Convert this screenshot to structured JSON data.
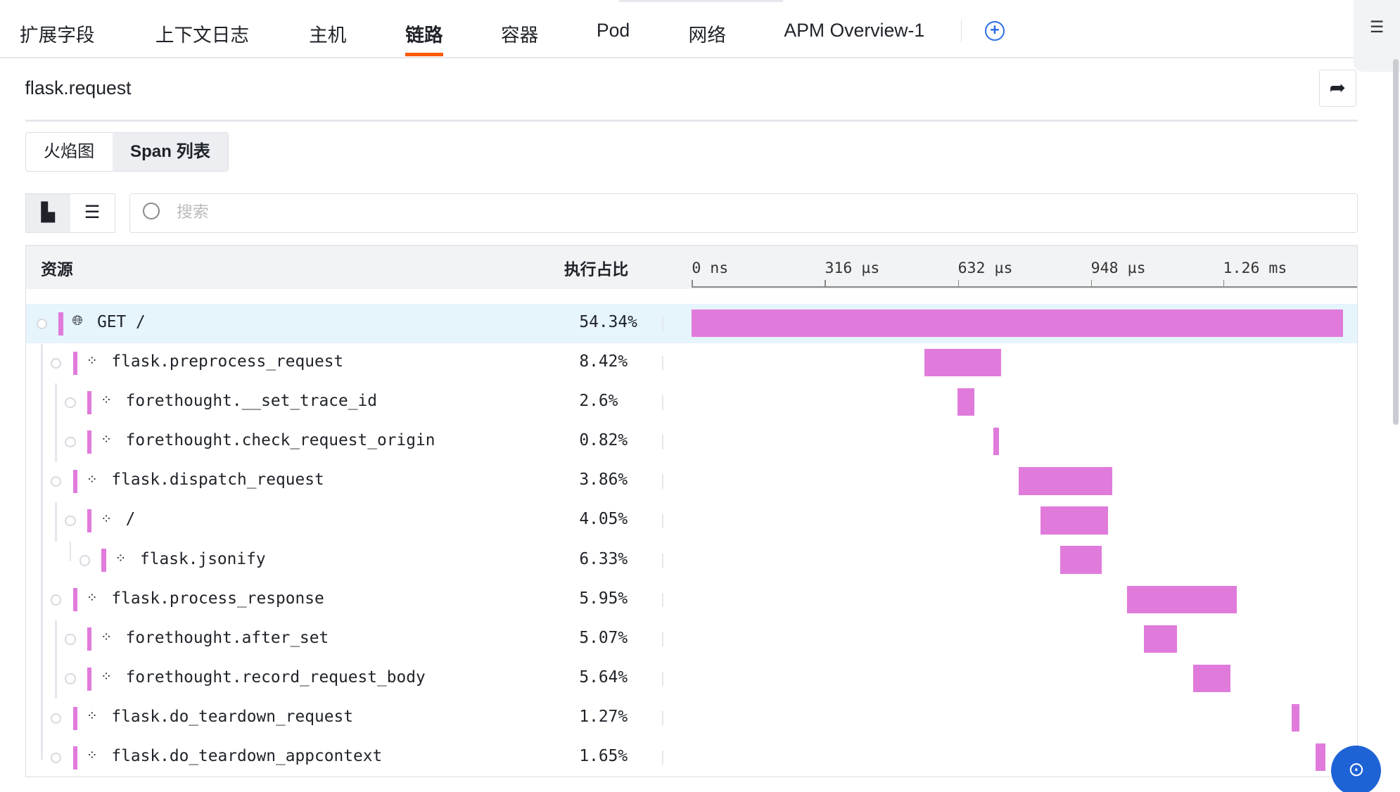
{
  "tabs": [
    "扩展字段",
    "上下文日志",
    "主机",
    "链路",
    "容器",
    "Pod",
    "网络",
    "APM Overview-1"
  ],
  "active_tab": "链路",
  "title": "flask.request",
  "view_tabs": {
    "flame": "火焰图",
    "span_list": "Span 列表"
  },
  "search": {
    "placeholder": "搜索"
  },
  "table": {
    "col_resource": "资源",
    "col_ratio": "执行占比",
    "ticks": [
      "0 ns",
      "316 µs",
      "632 µs",
      "948 µs",
      "1.26 ms"
    ]
  },
  "timeline": {
    "unit": "µs",
    "max": 1578,
    "bar_color": "#e07bdc"
  },
  "spans": [
    {
      "name": "GET /",
      "ratio": "54.34%",
      "depth": 0,
      "icon": "globe-icon",
      "start": 0,
      "duration": 1544
    },
    {
      "name": "flask.preprocess_request",
      "ratio": "8.42%",
      "depth": 1,
      "icon": "component-icon",
      "start": 551,
      "duration": 182
    },
    {
      "name": "forethought.__set_trace_id",
      "ratio": "2.6%",
      "depth": 2,
      "icon": "component-icon",
      "start": 630,
      "duration": 40
    },
    {
      "name": "forethought.check_request_origin",
      "ratio": "0.82%",
      "depth": 2,
      "icon": "component-icon",
      "start": 715,
      "duration": 13
    },
    {
      "name": "flask.dispatch_request",
      "ratio": "3.86%",
      "depth": 1,
      "icon": "component-icon",
      "start": 776,
      "duration": 221
    },
    {
      "name": "/",
      "ratio": "4.05%",
      "depth": 2,
      "icon": "component-icon",
      "start": 827,
      "duration": 161
    },
    {
      "name": "flask.jsonify",
      "ratio": "6.33%",
      "depth": 3,
      "icon": "component-icon",
      "start": 874,
      "duration": 98
    },
    {
      "name": "flask.process_response",
      "ratio": "5.95%",
      "depth": 1,
      "icon": "component-icon",
      "start": 1033,
      "duration": 259
    },
    {
      "name": "forethought.after_set",
      "ratio": "5.07%",
      "depth": 2,
      "icon": "component-icon",
      "start": 1073,
      "duration": 78
    },
    {
      "name": "forethought.record_request_body",
      "ratio": "5.64%",
      "depth": 2,
      "icon": "component-icon",
      "start": 1190,
      "duration": 87
    },
    {
      "name": "flask.do_teardown_request",
      "ratio": "1.27%",
      "depth": 1,
      "icon": "component-icon",
      "start": 1423,
      "duration": 19
    },
    {
      "name": "flask.do_teardown_appcontext",
      "ratio": "1.65%",
      "depth": 1,
      "icon": "component-icon",
      "start": 1480,
      "duration": 23
    }
  ]
}
